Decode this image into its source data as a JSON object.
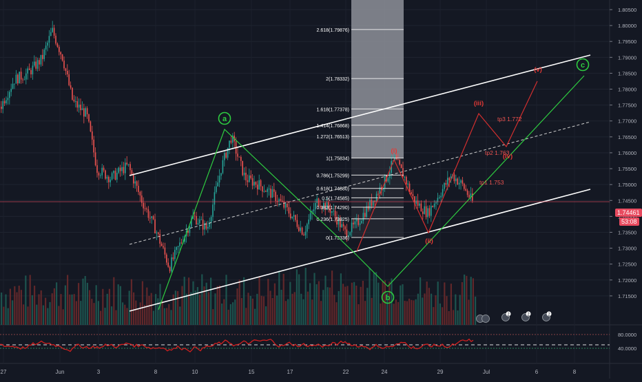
{
  "chart_data": {
    "type": "candlestick",
    "symbol_note": "",
    "price_axis": {
      "min": 1.71,
      "max": 1.805,
      "ticks": [
        "1.80500",
        "1.80000",
        "1.79500",
        "1.79000",
        "1.78500",
        "1.78000",
        "1.77500",
        "1.77000",
        "1.76500",
        "1.76000",
        "1.75500",
        "1.75000",
        "1.74500",
        "1.74000",
        "1.73500",
        "1.73000",
        "1.72500",
        "1.72000",
        "1.71500"
      ]
    },
    "last_price": {
      "value": "1.74461",
      "countdown": "53:08",
      "color": "#e84a5f"
    },
    "time_axis": {
      "labels": [
        "27",
        "Jun",
        "3",
        "8",
        "10",
        "15",
        "17",
        "22",
        "24",
        "29",
        "Jul",
        "6",
        "8"
      ]
    },
    "osc_axis": {
      "ticks": [
        "80.0000",
        "40.0000"
      ],
      "levels": [
        80,
        50,
        40
      ]
    },
    "fib_retracement": {
      "levels": [
        {
          "label": "2.618(1.79876)",
          "price": 1.79876
        },
        {
          "label": "2(1.78332)",
          "price": 1.78332
        },
        {
          "label": "1.618(1.77378)",
          "price": 1.77378
        },
        {
          "label": "1.414(1.76868)",
          "price": 1.76868
        },
        {
          "label": "1.272(1.76513)",
          "price": 1.76513
        },
        {
          "label": "1(1.75834)",
          "price": 1.75834
        },
        {
          "label": "0.786(1.75299)",
          "price": 1.75299
        },
        {
          "label": "0.618(1.74880)",
          "price": 1.7488
        },
        {
          "label": "0.5(1.74585)",
          "price": 1.74585
        },
        {
          "label": "0.382(1.74290)",
          "price": 1.7429
        },
        {
          "label": "0.236(1.73925)",
          "price": 1.73925
        },
        {
          "label": "0(1.73336)",
          "price": 1.73336
        }
      ]
    },
    "wave_labels_green": [
      "a",
      "b",
      "c"
    ],
    "wave_labels_red": [
      "(i)",
      "(ii)",
      "(iii)",
      "(iv)",
      "(v)"
    ],
    "targets": [
      "tp1 1.753",
      "tp2 1.763",
      "tp3 1.772"
    ],
    "colors": {
      "bg": "#141823",
      "up": "#26a69a",
      "down": "#ef5350",
      "channel": "#ffffff",
      "green_wave": "#2ecc40",
      "red_wave": "#d32f2f",
      "fib_shade": "#9aa0a6"
    },
    "event_badges": [
      "2",
      "2",
      "2"
    ]
  }
}
